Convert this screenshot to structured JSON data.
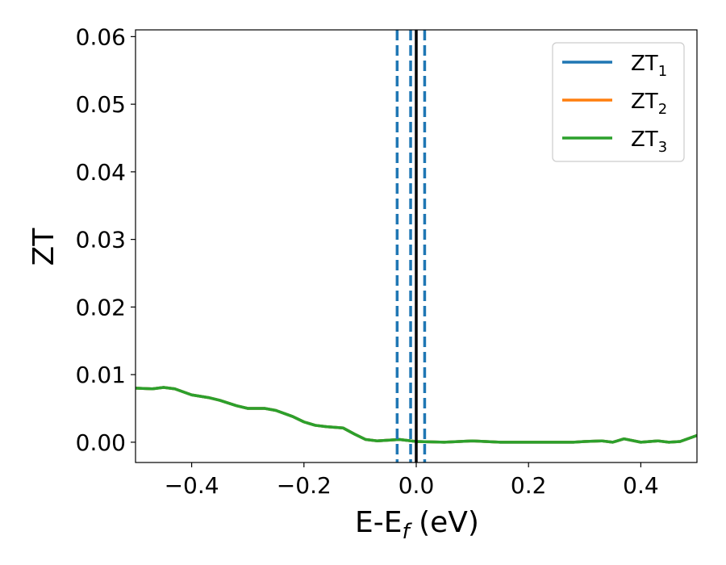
{
  "chart_data": {
    "type": "line",
    "xlabel_main": "E-E",
    "xlabel_sub": "f",
    "xlabel_unit": " (eV)",
    "ylabel": "ZT",
    "xlim": [
      -0.5,
      0.5
    ],
    "ylim": [
      -0.003,
      0.061
    ],
    "x_ticks": [
      -0.4,
      -0.2,
      0.0,
      0.2,
      0.4
    ],
    "x_tick_labels": [
      "−0.4",
      "−0.2",
      "0.0",
      "0.2",
      "0.4"
    ],
    "y_ticks": [
      0.0,
      0.01,
      0.02,
      0.03,
      0.04,
      0.05,
      0.06
    ],
    "y_tick_labels": [
      "0.00",
      "0.01",
      "0.02",
      "0.03",
      "0.04",
      "0.05",
      "0.06"
    ],
    "grid": false,
    "legend_position": "top-right",
    "vertical_lines": [
      {
        "x": -0.034,
        "style": "dashed",
        "color": "#1f77b4"
      },
      {
        "x": -0.01,
        "style": "dashed",
        "color": "#1f77b4"
      },
      {
        "x": 0.0,
        "style": "solid",
        "color": "#000000"
      },
      {
        "x": 0.015,
        "style": "dashed",
        "color": "#1f77b4"
      }
    ],
    "series": [
      {
        "name": "ZT",
        "sub": "1",
        "color": "#1f77b4",
        "x": [
          -0.5,
          -0.47,
          -0.45,
          -0.43,
          -0.4,
          -0.37,
          -0.35,
          -0.32,
          -0.3,
          -0.27,
          -0.25,
          -0.22,
          -0.2,
          -0.18,
          -0.16,
          -0.13,
          -0.11,
          -0.09,
          -0.07,
          -0.05,
          -0.03,
          -0.01,
          0.0,
          0.05,
          0.1,
          0.15,
          0.2,
          0.25,
          0.28,
          0.3,
          0.33,
          0.35,
          0.37,
          0.4,
          0.43,
          0.45,
          0.47,
          0.5
        ],
        "y": [
          0.008,
          0.0079,
          0.0081,
          0.0079,
          0.007,
          0.0066,
          0.0062,
          0.0054,
          0.005,
          0.005,
          0.0047,
          0.0038,
          0.003,
          0.0025,
          0.0023,
          0.0021,
          0.0012,
          0.0004,
          0.0002,
          0.0003,
          0.0004,
          0.0002,
          0.0001,
          0.0,
          0.0002,
          0.0,
          0.0,
          0.0,
          0.0,
          0.0001,
          0.0002,
          0.0,
          0.0005,
          0.0,
          0.0002,
          0.0,
          0.0001,
          0.001
        ]
      },
      {
        "name": "ZT",
        "sub": "2",
        "color": "#ff7f0e",
        "x": [
          -0.5,
          -0.47,
          -0.45,
          -0.43,
          -0.4,
          -0.37,
          -0.35,
          -0.32,
          -0.3,
          -0.27,
          -0.25,
          -0.22,
          -0.2,
          -0.18,
          -0.16,
          -0.13,
          -0.11,
          -0.09,
          -0.07,
          -0.05,
          -0.03,
          -0.01,
          0.0,
          0.05,
          0.1,
          0.15,
          0.2,
          0.25,
          0.28,
          0.3,
          0.33,
          0.35,
          0.37,
          0.4,
          0.43,
          0.45,
          0.47,
          0.5
        ],
        "y": [
          0.008,
          0.0079,
          0.0081,
          0.0079,
          0.007,
          0.0066,
          0.0062,
          0.0054,
          0.005,
          0.005,
          0.0047,
          0.0038,
          0.003,
          0.0025,
          0.0023,
          0.0021,
          0.0012,
          0.0004,
          0.0002,
          0.0003,
          0.0004,
          0.0002,
          0.0001,
          0.0,
          0.0002,
          0.0,
          0.0,
          0.0,
          0.0,
          0.0001,
          0.0002,
          0.0,
          0.0005,
          0.0,
          0.0002,
          0.0,
          0.0001,
          0.001
        ]
      },
      {
        "name": "ZT",
        "sub": "3",
        "color": "#2ca02c",
        "x": [
          -0.5,
          -0.47,
          -0.45,
          -0.43,
          -0.4,
          -0.37,
          -0.35,
          -0.32,
          -0.3,
          -0.27,
          -0.25,
          -0.22,
          -0.2,
          -0.18,
          -0.16,
          -0.13,
          -0.11,
          -0.09,
          -0.07,
          -0.05,
          -0.03,
          -0.01,
          0.0,
          0.05,
          0.1,
          0.15,
          0.2,
          0.25,
          0.28,
          0.3,
          0.33,
          0.35,
          0.37,
          0.4,
          0.43,
          0.45,
          0.47,
          0.5
        ],
        "y": [
          0.008,
          0.0079,
          0.0081,
          0.0079,
          0.007,
          0.0066,
          0.0062,
          0.0054,
          0.005,
          0.005,
          0.0047,
          0.0038,
          0.003,
          0.0025,
          0.0023,
          0.0021,
          0.0012,
          0.0004,
          0.0002,
          0.0003,
          0.0004,
          0.0002,
          0.0001,
          0.0,
          0.0002,
          0.0,
          0.0,
          0.0,
          0.0,
          0.0001,
          0.0002,
          0.0,
          0.0005,
          0.0,
          0.0002,
          0.0,
          0.0001,
          0.001
        ]
      }
    ]
  }
}
